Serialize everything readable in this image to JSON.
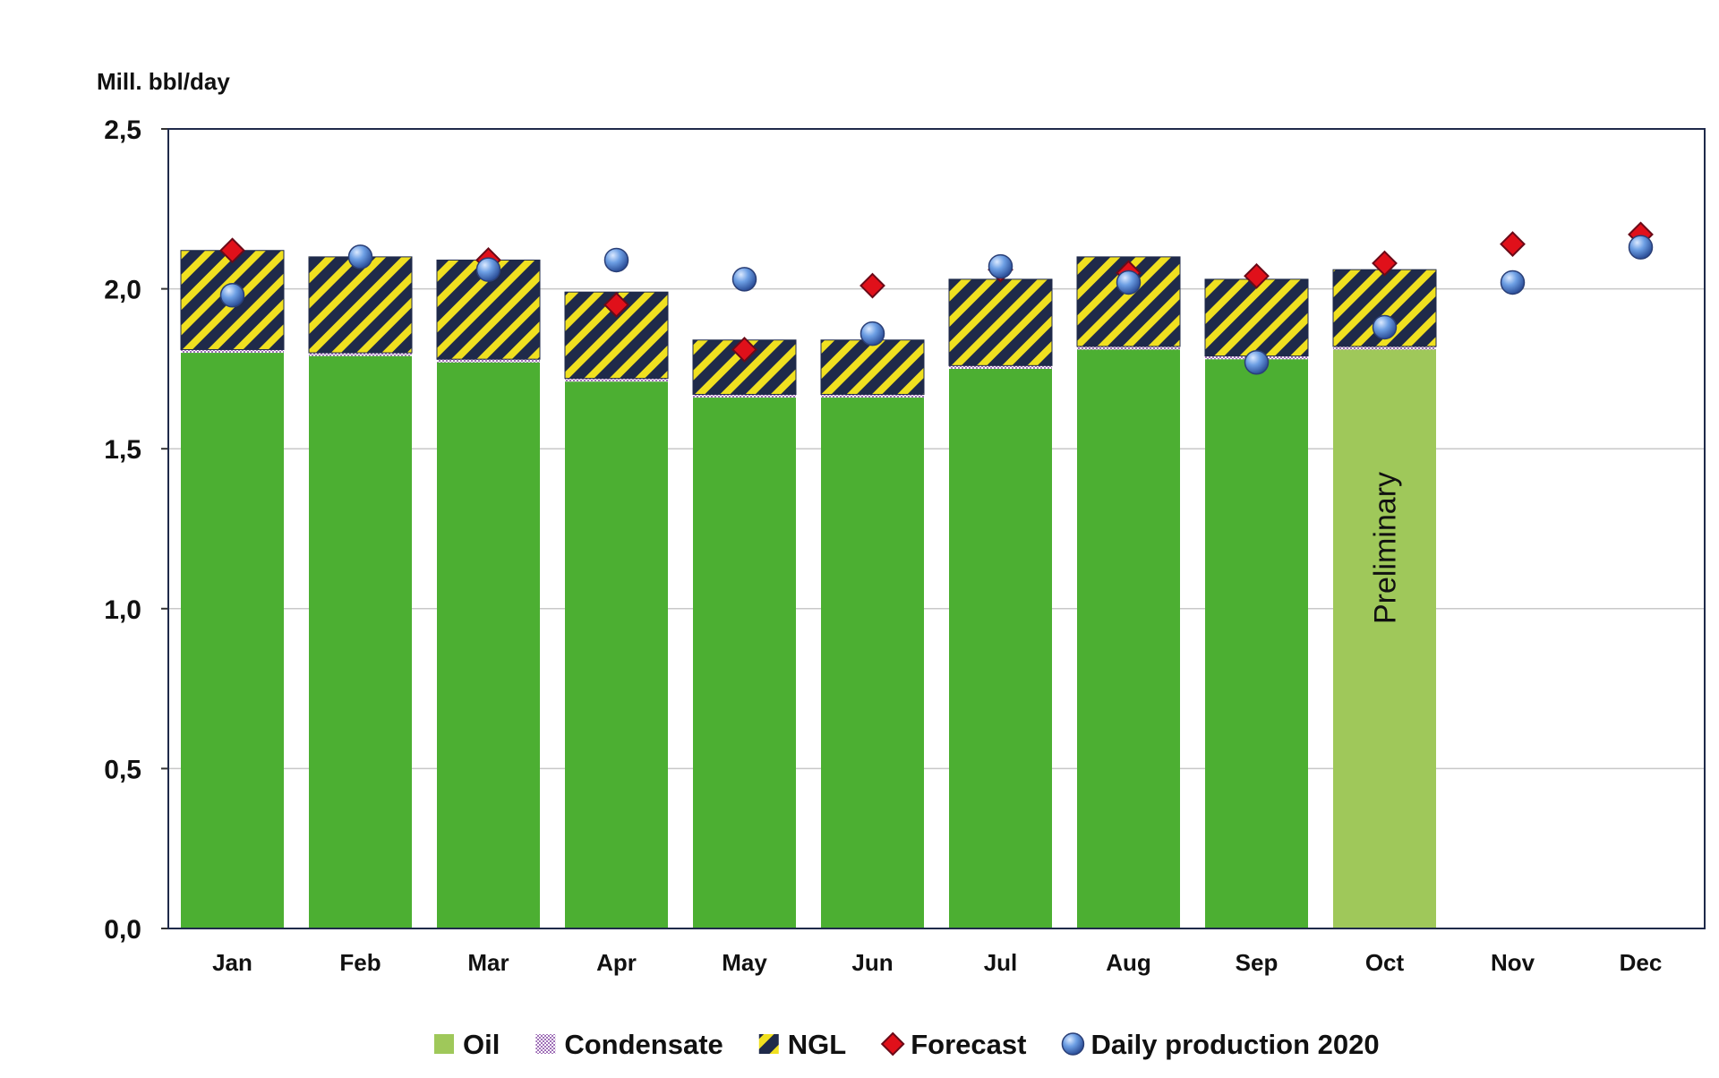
{
  "chart_data": {
    "type": "bar",
    "stacked": true,
    "ylabel": "Mill. bbl/day",
    "ylim": [
      0,
      2.5
    ],
    "yticks": [
      "0,0",
      "0,5",
      "1,0",
      "1,5",
      "2,0",
      "2,5"
    ],
    "ytick_values": [
      0,
      0.5,
      1.0,
      1.5,
      2.0,
      2.5
    ],
    "grid": true,
    "categories": [
      "Jan",
      "Feb",
      "Mar",
      "Apr",
      "May",
      "Jun",
      "Jul",
      "Aug",
      "Sep",
      "Oct",
      "Nov",
      "Dec"
    ],
    "series": [
      {
        "name": "Oil",
        "kind": "bar",
        "color": "#4caf32",
        "preliminary_color": "#9fc85a",
        "values": [
          1.8,
          1.79,
          1.77,
          1.71,
          1.66,
          1.66,
          1.75,
          1.81,
          1.78,
          1.81,
          null,
          null
        ]
      },
      {
        "name": "Condensate",
        "kind": "bar",
        "color": "#e8d8ee",
        "values": [
          0.01,
          0.01,
          0.01,
          0.01,
          0.01,
          0.01,
          0.01,
          0.01,
          0.01,
          0.01,
          null,
          null
        ]
      },
      {
        "name": "NGL",
        "kind": "bar",
        "color": "#1f2a4a",
        "stripe": "#f0e020",
        "values": [
          0.31,
          0.3,
          0.31,
          0.27,
          0.17,
          0.17,
          0.27,
          0.28,
          0.24,
          0.24,
          null,
          null
        ]
      },
      {
        "name": "Forecast",
        "kind": "marker",
        "color": "#e0101a",
        "values": [
          2.12,
          null,
          2.09,
          1.95,
          1.81,
          2.01,
          2.06,
          2.05,
          2.04,
          2.08,
          2.14,
          2.17
        ]
      },
      {
        "name": "Daily production 2020",
        "kind": "marker",
        "color": "#5a8fd8",
        "values": [
          1.98,
          2.1,
          2.06,
          2.09,
          2.03,
          1.86,
          2.07,
          2.02,
          1.77,
          1.88,
          2.02,
          2.13
        ]
      }
    ],
    "preliminary_index": 9,
    "annotation": "Preliminary",
    "legend_position": "bottom-center"
  }
}
